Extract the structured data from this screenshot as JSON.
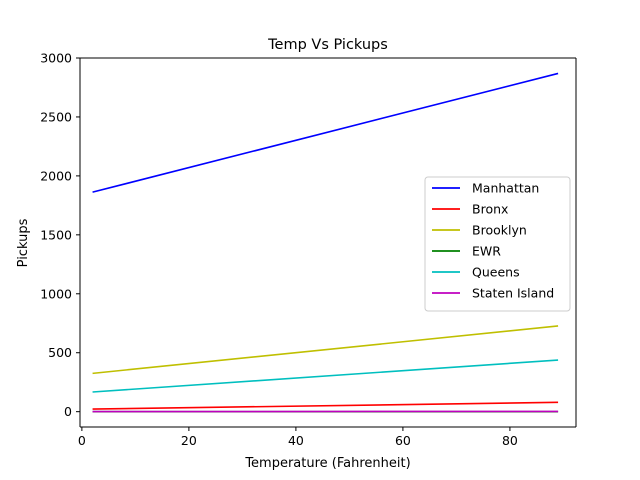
{
  "chart_data": {
    "type": "line",
    "title": "Temp Vs Pickups",
    "xlabel": "Temperature (Fahrenheit)",
    "ylabel": "Pickups",
    "xlim": [
      -0.35,
      92.35
    ],
    "ylim": [
      -130,
      3000
    ],
    "xticks": [
      0,
      20,
      40,
      60,
      80
    ],
    "yticks": [
      0,
      500,
      1000,
      1500,
      2000,
      2500,
      3000
    ],
    "xtick_labels": [
      "0",
      "20",
      "40",
      "60",
      "80"
    ],
    "ytick_labels": [
      "0",
      "500",
      "1000",
      "1500",
      "2000",
      "2500",
      "3000"
    ],
    "grid": false,
    "legend_position": "center-right",
    "series": [
      {
        "name": "Manhattan",
        "color": "#0000ff",
        "x": [
          2,
          89
        ],
        "y": [
          1862,
          2869
        ]
      },
      {
        "name": "Bronx",
        "color": "#ff0000",
        "x": [
          2,
          89
        ],
        "y": [
          22,
          79
        ]
      },
      {
        "name": "Brooklyn",
        "color": "#bfbf00",
        "x": [
          2,
          89
        ],
        "y": [
          325,
          727
        ]
      },
      {
        "name": "EWR",
        "color": "#008000",
        "x": [
          2,
          89
        ],
        "y": [
          0,
          0
        ]
      },
      {
        "name": "Queens",
        "color": "#00bfbf",
        "x": [
          2,
          89
        ],
        "y": [
          167,
          438
        ]
      },
      {
        "name": "Staten Island",
        "color": "#bf00bf",
        "x": [
          2,
          89
        ],
        "y": [
          1,
          2
        ]
      }
    ]
  }
}
